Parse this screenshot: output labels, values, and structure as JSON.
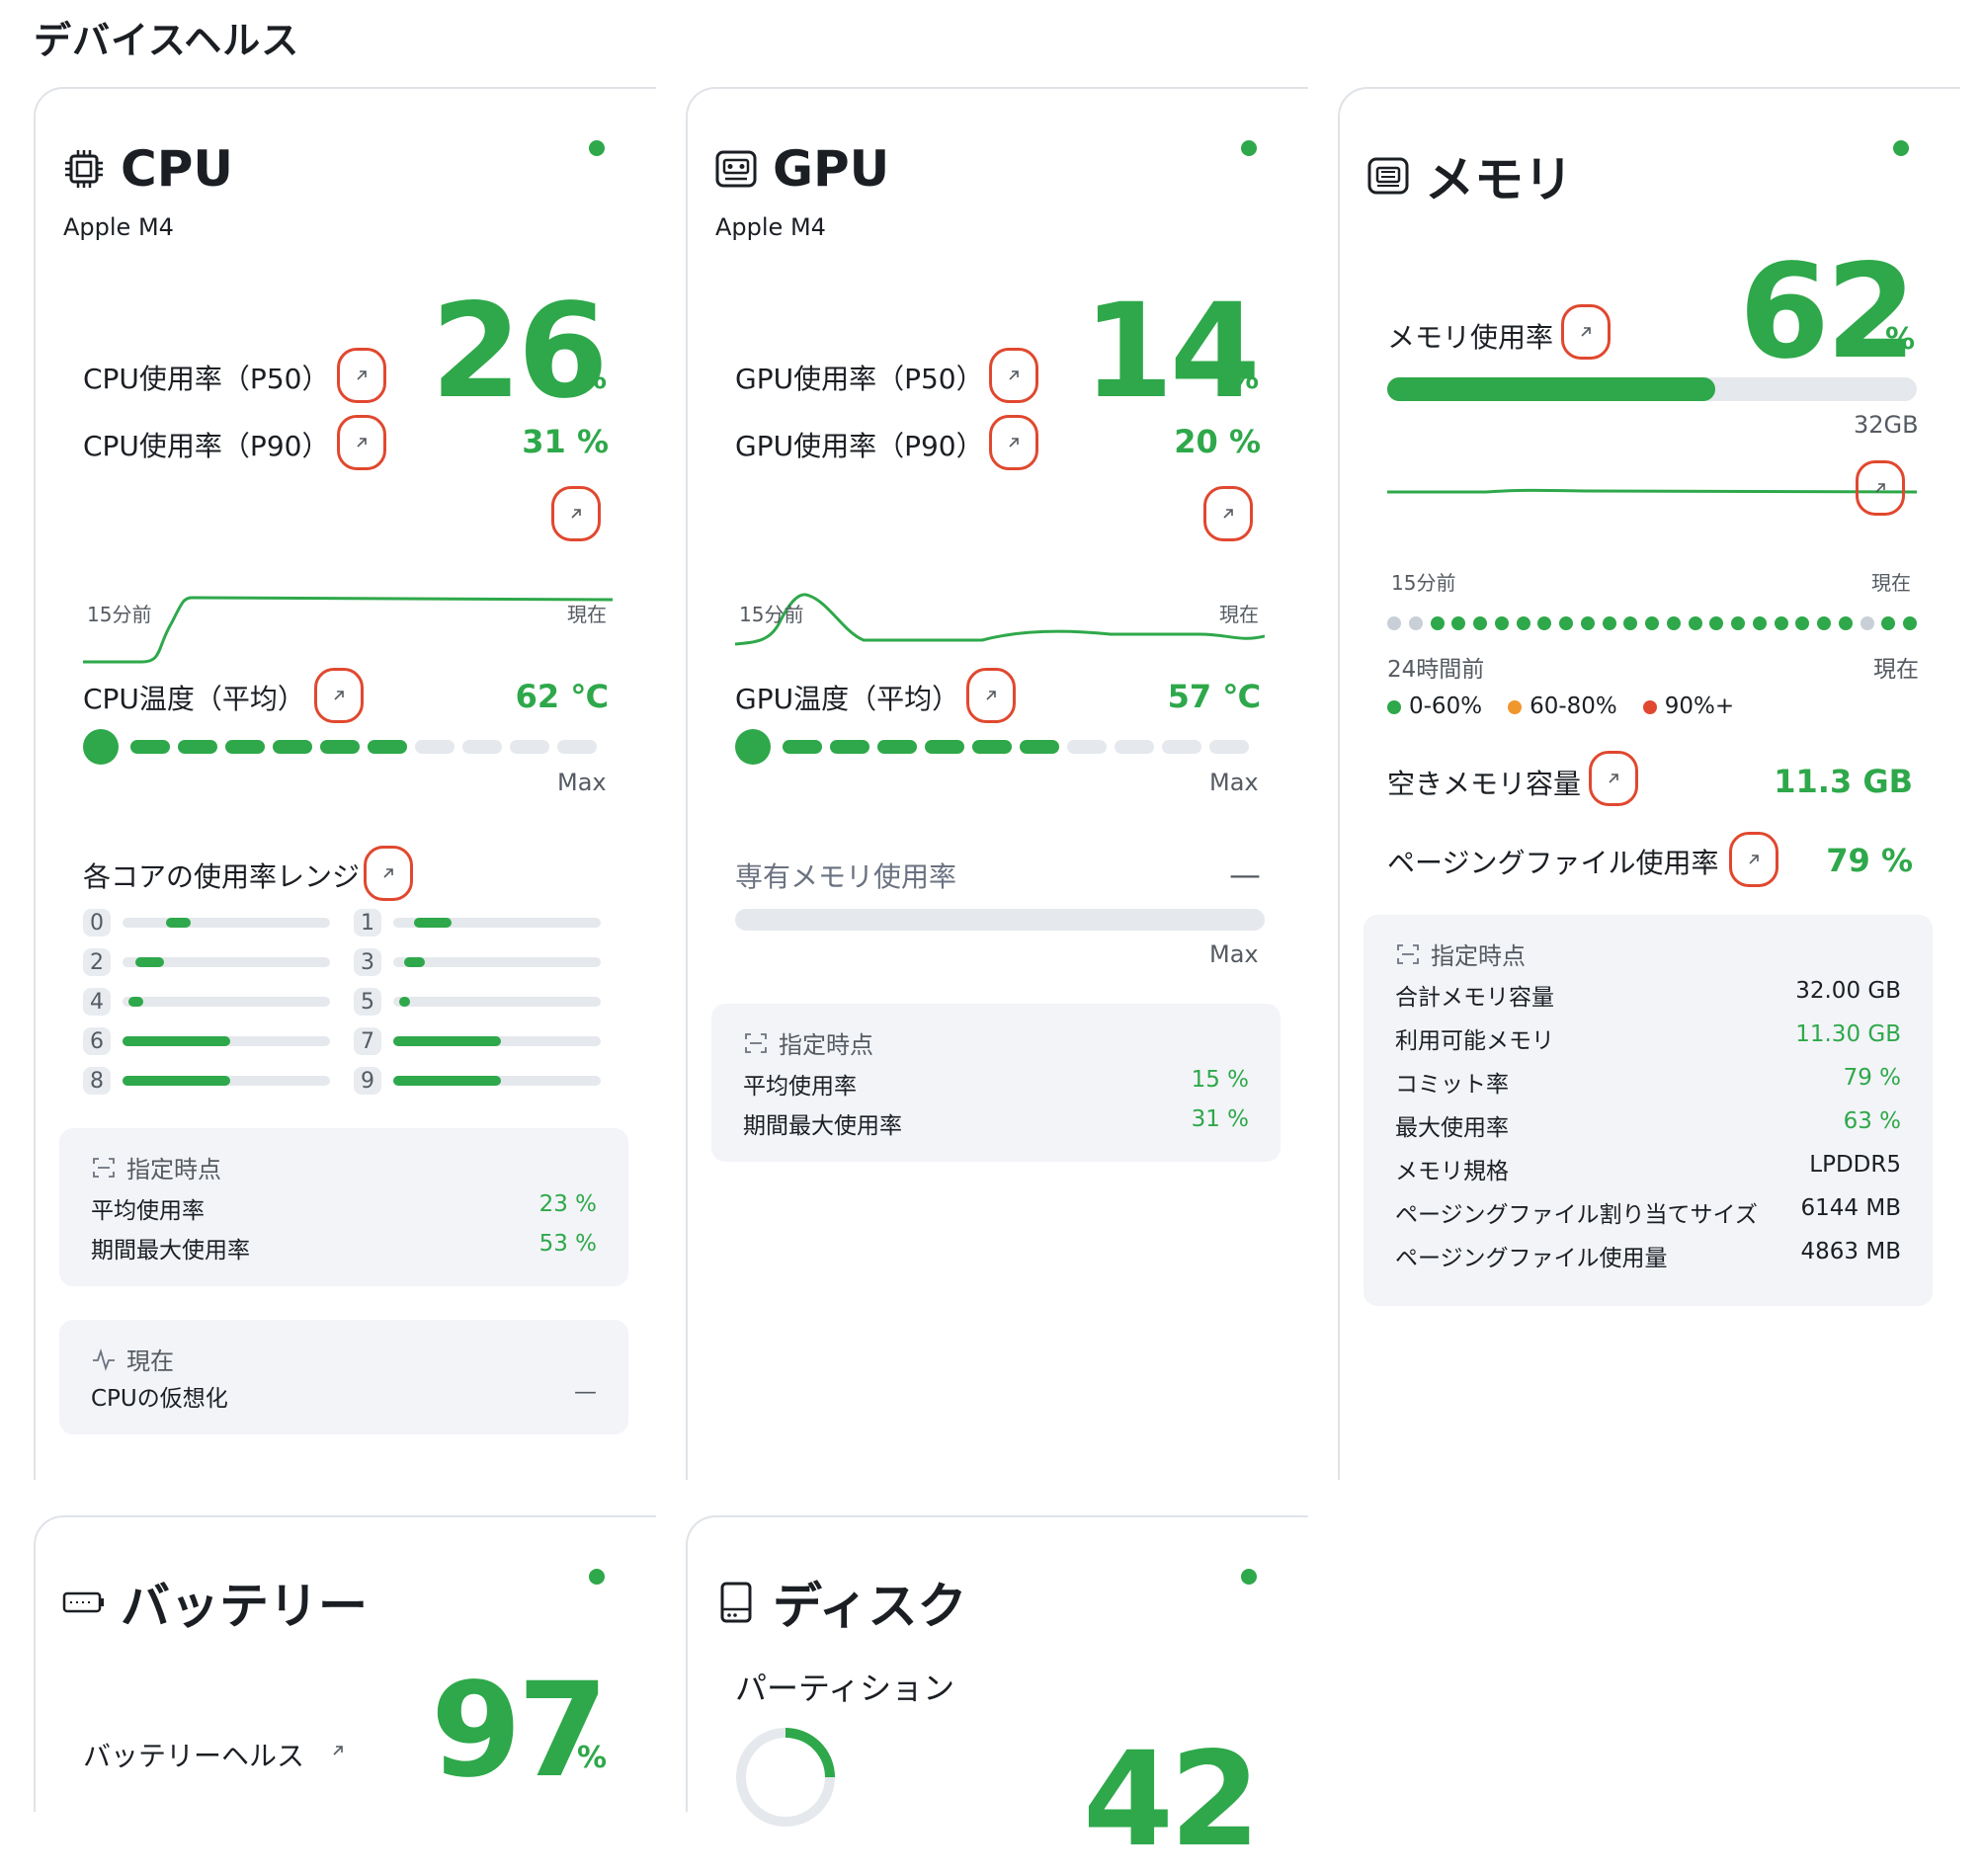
{
  "page_title": "デバイスヘルス",
  "colors": {
    "accent": "#2ea84a",
    "highlight": "#e0482f",
    "warn": "#f0962e",
    "danger": "#e0482f"
  },
  "cpu": {
    "title": "CPU",
    "subtitle": "Apple M4",
    "p50_label": "CPU使用率（P50）",
    "p90_label": "CPU使用率（P90）",
    "usage_value": "26",
    "unit_percent": "%",
    "p90_value": "31 %",
    "chart_start": "15分前",
    "chart_end": "現在",
    "temp_label": "CPU温度（平均）",
    "temp_value": "62 ℃",
    "temp_level": 0.6,
    "temp_max": "Max",
    "cores_label": "各コアの使用率レンジ",
    "cores": [
      {
        "id": "0",
        "from": 0.21,
        "to": 0.33
      },
      {
        "id": "1",
        "from": 0.1,
        "to": 0.28
      },
      {
        "id": "2",
        "from": 0.06,
        "to": 0.2
      },
      {
        "id": "3",
        "from": 0.05,
        "to": 0.15
      },
      {
        "id": "4",
        "from": 0.03,
        "to": 0.1
      },
      {
        "id": "5",
        "from": 0.03,
        "to": 0.08
      },
      {
        "id": "6",
        "from": 0.0,
        "to": 0.52
      },
      {
        "id": "7",
        "from": 0.0,
        "to": 0.52
      },
      {
        "id": "8",
        "from": 0.0,
        "to": 0.52
      },
      {
        "id": "9",
        "from": 0.0,
        "to": 0.52
      }
    ],
    "snapshot_label": "指定時点",
    "avg_label": "平均使用率",
    "avg_value": "23 %",
    "max_label": "期間最大使用率",
    "max_value": "53 %",
    "current_label": "現在",
    "virt_label": "CPUの仮想化",
    "virt_value": "—"
  },
  "gpu": {
    "title": "GPU",
    "subtitle": "Apple M4",
    "p50_label": "GPU使用率（P50）",
    "p90_label": "GPU使用率（P90）",
    "usage_value": "14",
    "unit_percent": "%",
    "p90_value": "20 %",
    "chart_start": "15分前",
    "chart_end": "現在",
    "temp_label": "GPU温度（平均）",
    "temp_value": "57 ℃",
    "temp_level": 0.6,
    "temp_max": "Max",
    "vram_label": "専有メモリ使用率",
    "vram_value": "—",
    "vram_max": "Max",
    "snapshot_label": "指定時点",
    "avg_label": "平均使用率",
    "avg_value": "15 %",
    "max_label": "期間最大使用率",
    "max_value": "31 %"
  },
  "memory": {
    "title": "メモリ",
    "usage_label": "メモリ使用率",
    "usage_value": "62",
    "unit_percent": "%",
    "usage_level": 0.62,
    "total_short": "32GB",
    "chart_start": "15分前",
    "chart_end": "現在",
    "history_start": "24時間前",
    "history_end": "現在",
    "history": [
      0,
      0,
      1,
      1,
      1,
      1,
      1,
      1,
      1,
      1,
      1,
      1,
      1,
      1,
      1,
      1,
      1,
      1,
      1,
      1,
      1,
      1,
      0,
      1,
      1
    ],
    "legend": [
      {
        "label": "0-60%",
        "color": "#2ea84a"
      },
      {
        "label": "60-80%",
        "color": "#f0962e"
      },
      {
        "label": "90%+",
        "color": "#e0482f"
      }
    ],
    "free_label": "空きメモリ容量",
    "free_value": "11.3 GB",
    "paging_label": "ページングファイル使用率",
    "paging_value": "79 %",
    "snapshot_label": "指定時点",
    "rows": [
      {
        "label": "合計メモリ容量",
        "value": "32.00 GB",
        "green": false
      },
      {
        "label": "利用可能メモリ",
        "value": "11.30 GB",
        "green": true
      },
      {
        "label": "コミット率",
        "value": "79 %",
        "green": true
      },
      {
        "label": "最大使用率",
        "value": "63 %",
        "green": true
      },
      {
        "label": "メモリ規格",
        "value": "LPDDR5",
        "green": false
      },
      {
        "label": "ページングファイル割り当てサイズ",
        "value": "6144 MB",
        "green": false
      },
      {
        "label": "ページングファイル使用量",
        "value": "4863 MB",
        "green": false
      }
    ]
  },
  "battery": {
    "title": "バッテリー",
    "health_label": "バッテリーヘルス",
    "health_value": "97",
    "unit_percent": "%"
  },
  "disk": {
    "title": "ディスク",
    "partition_label": "パーティション",
    "partial_value": "42"
  }
}
